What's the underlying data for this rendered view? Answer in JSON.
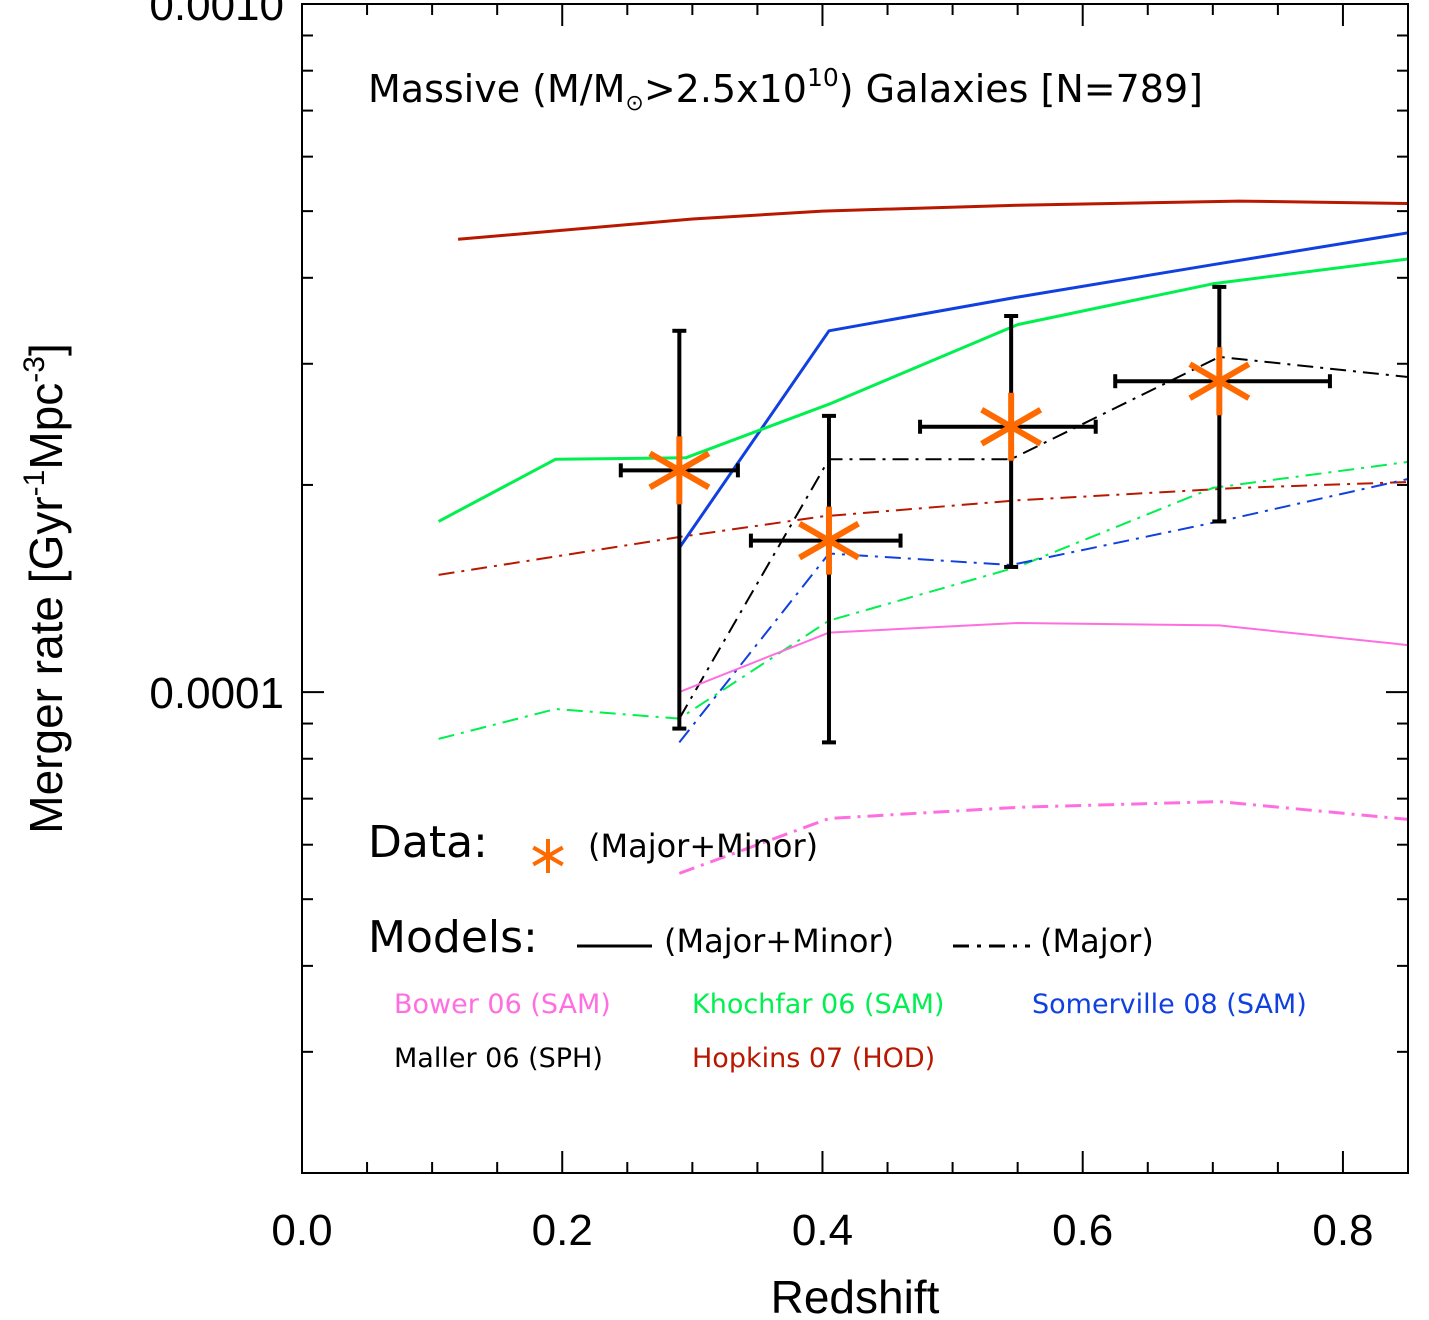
{
  "chart_data": {
    "type": "line",
    "title": "",
    "xlabel": "Redshift",
    "ylabel_parts": {
      "main": "Merger rate [Gyr",
      "exp1": "-1",
      "mid": "Mpc",
      "exp2": "-3",
      "end": "]"
    },
    "xlim": [
      0.0,
      0.85
    ],
    "ylim": [
      2e-05,
      0.001
    ],
    "y_scale": "log",
    "x_ticks": [
      {
        "value": 0.0,
        "label": "0.0"
      },
      {
        "value": 0.2,
        "label": "0.2"
      },
      {
        "value": 0.4,
        "label": "0.4"
      },
      {
        "value": 0.6,
        "label": "0.6"
      },
      {
        "value": 0.8,
        "label": "0.8"
      }
    ],
    "y_ticks": [
      {
        "value": 0.0001,
        "label": "0.0001"
      },
      {
        "value": 0.001,
        "label": "0.0010"
      }
    ],
    "annotation": {
      "prefix": "Massive (M/M",
      "sun": "⊙",
      "middle": ">2.5x10",
      "exponent": "10",
      "suffix": ") Galaxies [N=789]"
    },
    "legend": {
      "data_label": "Data:",
      "data_desc": "(Major+Minor)",
      "models_label": "Models:",
      "solid_desc": "(Major+Minor)",
      "dashdot_desc": "(Major)",
      "entries": [
        {
          "name": "Bower 06 (SAM)",
          "color": "#ff6ee0"
        },
        {
          "name": "Khochfar 06 (SAM)",
          "color": "#00f050"
        },
        {
          "name": "Somerville 08 (SAM)",
          "color": "#1040e0"
        },
        {
          "name": "Maller 06 (SPH)",
          "color": "#000000"
        },
        {
          "name": "Hopkins 07 (HOD)",
          "color": "#b81800"
        }
      ]
    },
    "data_points": {
      "color": "#ff6a00",
      "points": [
        {
          "x": 0.29,
          "y": 0.00021,
          "xerr": [
            0.245,
            0.335
          ],
          "yerr": [
            8.85e-05,
            0.000335
          ]
        },
        {
          "x": 0.405,
          "y": 0.000166,
          "xerr": [
            0.345,
            0.46
          ],
          "yerr": [
            8.45e-05,
            0.000252
          ]
        },
        {
          "x": 0.545,
          "y": 0.000243,
          "xerr": [
            0.475,
            0.61
          ],
          "yerr": [
            0.000152,
            0.000352
          ]
        },
        {
          "x": 0.705,
          "y": 0.000283,
          "xerr": [
            0.625,
            0.79
          ],
          "yerr": [
            0.000177,
            0.000388
          ]
        }
      ]
    },
    "series": [
      {
        "id": "hopkins-major-minor",
        "color": "#b81800",
        "style": "solid",
        "width": 3,
        "x": [
          0.12,
          0.3,
          0.4,
          0.55,
          0.72,
          0.85
        ],
        "y": [
          0.000455,
          0.000487,
          0.0005,
          0.00051,
          0.000517,
          0.000513
        ]
      },
      {
        "id": "somerville-major-minor",
        "color": "#1040e0",
        "style": "solid",
        "width": 3,
        "x": [
          0.29,
          0.405,
          0.55,
          0.7,
          0.85
        ],
        "y": [
          0.000162,
          0.000335,
          0.000375,
          0.000418,
          0.000465
        ]
      },
      {
        "id": "khochfar-major-minor",
        "color": "#00f050",
        "style": "solid",
        "width": 3,
        "x": [
          0.105,
          0.195,
          0.295,
          0.405,
          0.55,
          0.7,
          0.85
        ],
        "y": [
          0.000177,
          0.000218,
          0.000219,
          0.000262,
          0.000342,
          0.000392,
          0.000426
        ]
      },
      {
        "id": "maller-major",
        "color": "#000000",
        "style": "dashdot",
        "width": 2,
        "x": [
          0.29,
          0.405,
          0.545,
          0.705,
          0.85
        ],
        "y": [
          9.15e-05,
          0.000218,
          0.000218,
          0.000307,
          0.000287
        ]
      },
      {
        "id": "hopkins-major",
        "color": "#b81800",
        "style": "dashdot",
        "width": 2,
        "x": [
          0.105,
          0.29,
          0.4,
          0.55,
          0.72,
          0.85
        ],
        "y": [
          0.000148,
          0.000168,
          0.00018,
          0.00019,
          0.000198,
          0.000202
        ]
      },
      {
        "id": "khochfar-major",
        "color": "#00f050",
        "style": "dashdot",
        "width": 2,
        "x": [
          0.105,
          0.195,
          0.29,
          0.405,
          0.55,
          0.7,
          0.85
        ],
        "y": [
          8.55e-05,
          9.45e-05,
          9.15e-05,
          0.000127,
          0.000152,
          0.000198,
          0.000216
        ]
      },
      {
        "id": "somerville-major",
        "color": "#1040e0",
        "style": "dashdot",
        "width": 2,
        "x": [
          0.29,
          0.405,
          0.545,
          0.705,
          0.85
        ],
        "y": [
          8.45e-05,
          0.000159,
          0.000153,
          0.000177,
          0.000204
        ]
      },
      {
        "id": "bower-major-minor",
        "color": "#ff6ee0",
        "style": "solid",
        "width": 2,
        "x": [
          0.29,
          0.405,
          0.55,
          0.705,
          0.85
        ],
        "y": [
          0.0001,
          0.000122,
          0.000126,
          0.000125,
          0.000117
        ]
      },
      {
        "id": "bower-major",
        "color": "#ff6ee0",
        "style": "dashdot",
        "width": 3,
        "x": [
          0.29,
          0.405,
          0.55,
          0.705,
          0.85
        ],
        "y": [
          5.45e-05,
          6.55e-05,
          6.8e-05,
          6.93e-05,
          6.53e-05
        ]
      }
    ]
  }
}
